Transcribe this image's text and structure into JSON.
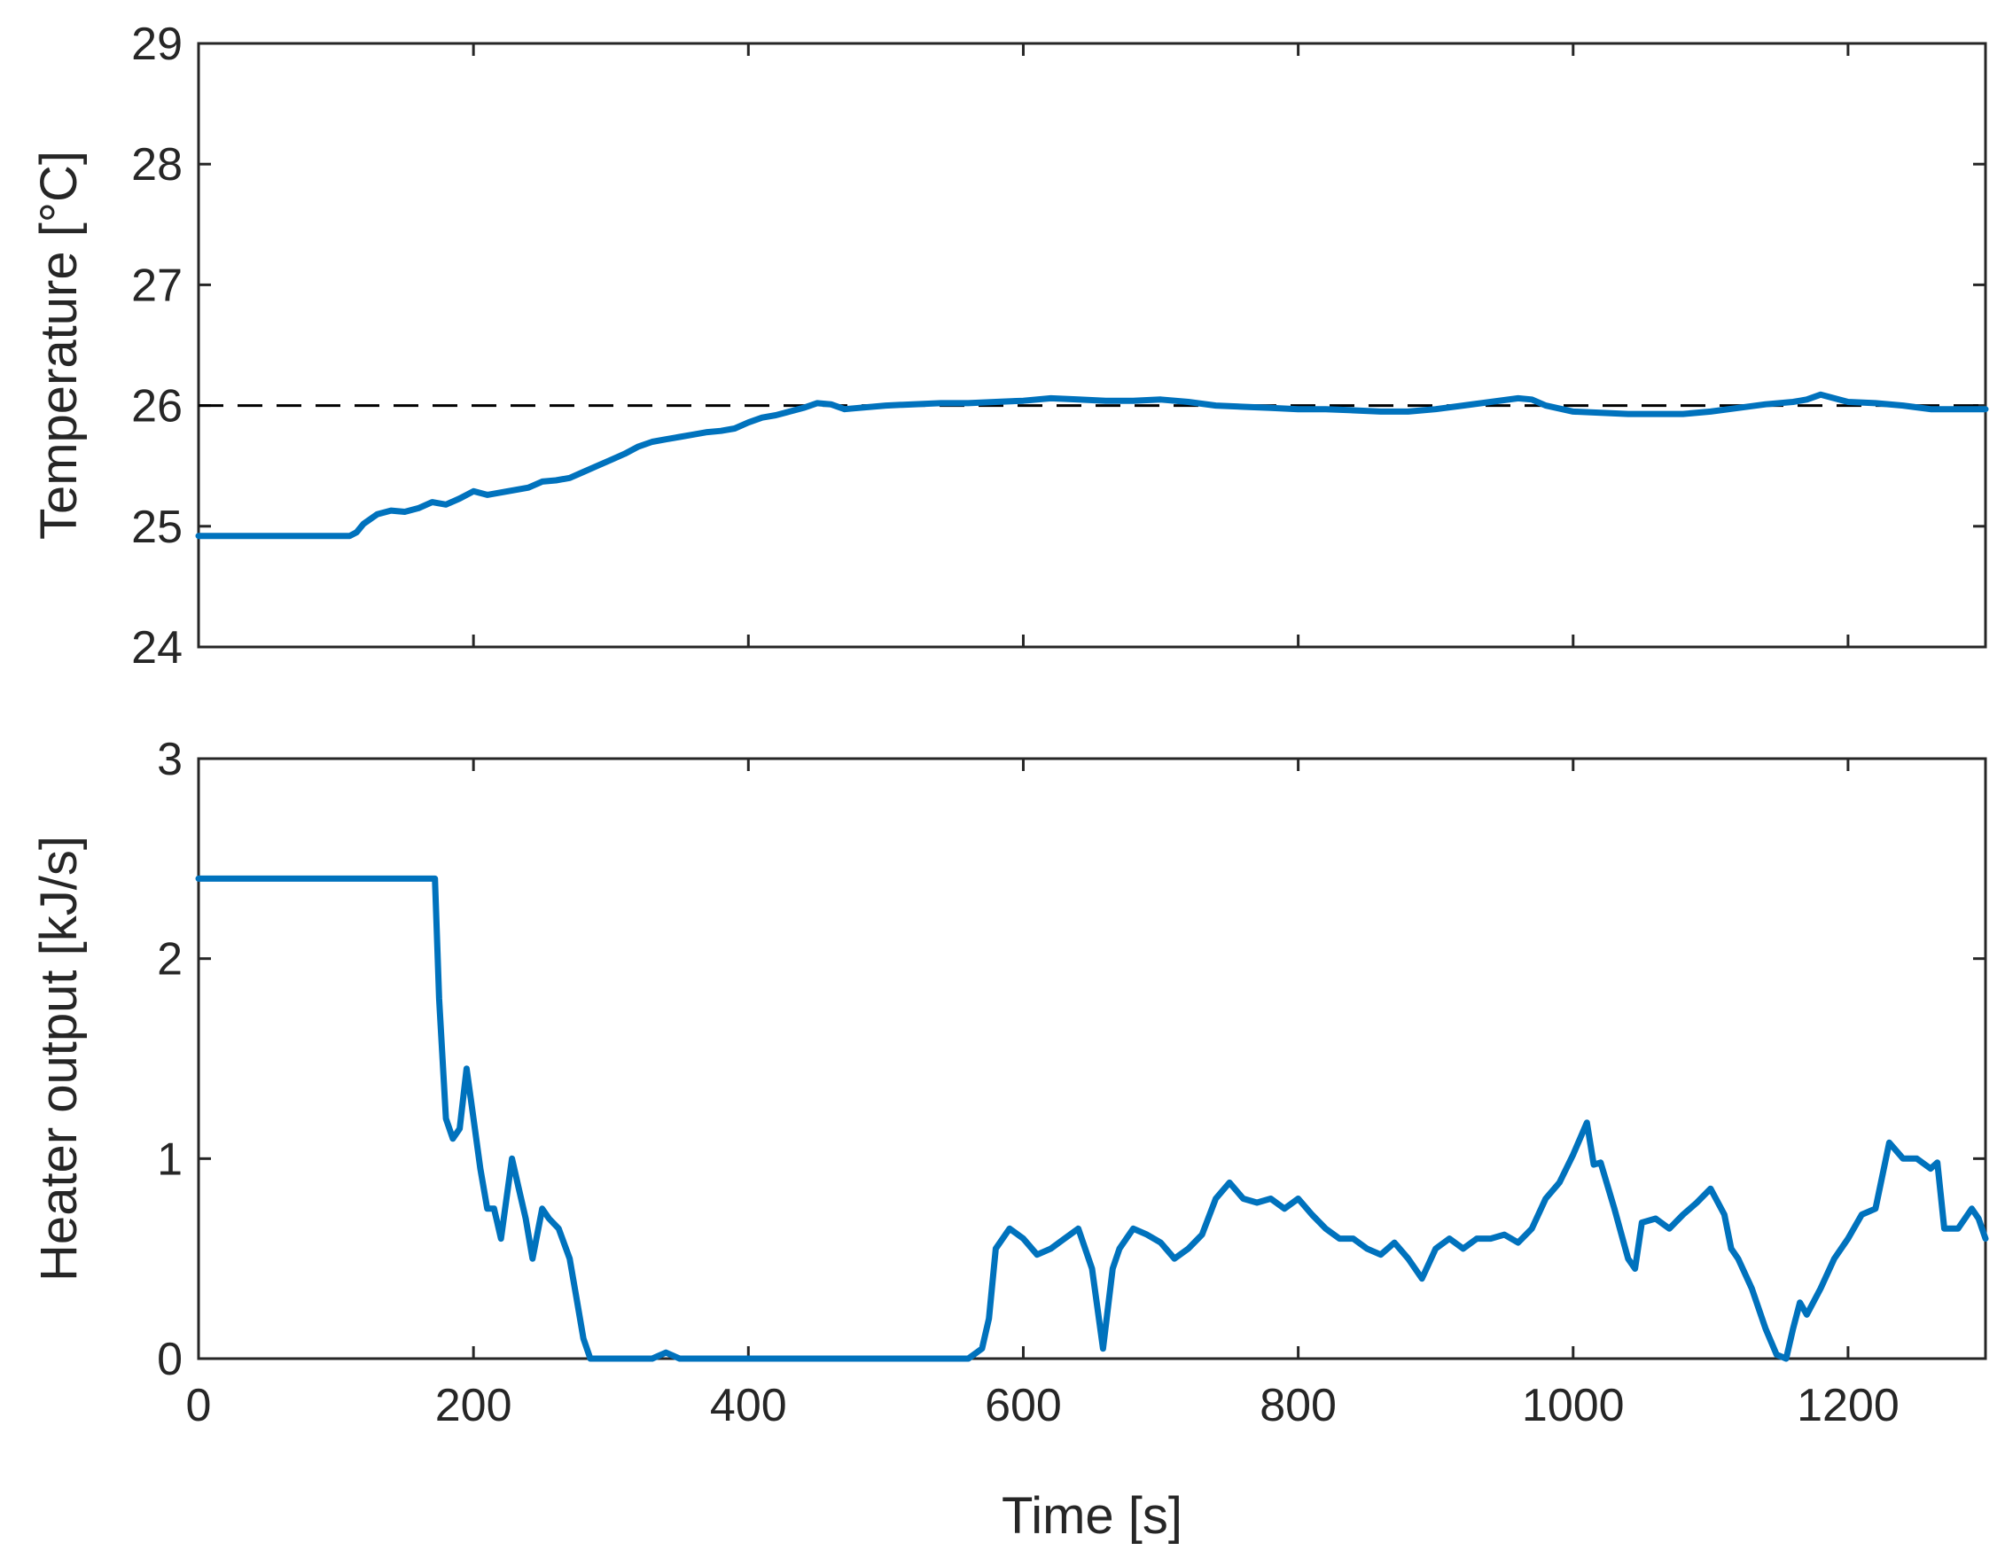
{
  "chart_data": [
    {
      "type": "line",
      "ylabel": "Temperature [°C]",
      "xlim": [
        0,
        1300
      ],
      "ylim": [
        24,
        29
      ],
      "yticks": [
        24,
        25,
        26,
        27,
        28,
        29
      ],
      "xticks": [
        200,
        400,
        600,
        800,
        1000,
        1200
      ],
      "show_x_tick_labels": false,
      "grid": false,
      "reference_line": {
        "y": 26,
        "style": "dashed",
        "color": "#000000"
      },
      "series": [
        {
          "color": "#0072BD",
          "x": [
            0,
            40,
            80,
            110,
            115,
            120,
            130,
            140,
            150,
            160,
            170,
            180,
            190,
            200,
            210,
            220,
            230,
            240,
            250,
            260,
            270,
            280,
            290,
            300,
            310,
            320,
            330,
            340,
            350,
            360,
            370,
            380,
            390,
            400,
            410,
            420,
            430,
            440,
            450,
            460,
            470,
            480,
            500,
            520,
            540,
            560,
            580,
            600,
            620,
            640,
            660,
            680,
            700,
            720,
            740,
            760,
            780,
            800,
            820,
            840,
            860,
            880,
            900,
            920,
            940,
            960,
            970,
            980,
            1000,
            1020,
            1040,
            1060,
            1080,
            1100,
            1120,
            1140,
            1160,
            1170,
            1180,
            1190,
            1200,
            1220,
            1240,
            1260,
            1280,
            1300
          ],
          "y": [
            24.92,
            24.92,
            24.92,
            24.92,
            24.95,
            25.02,
            25.1,
            25.13,
            25.12,
            25.15,
            25.2,
            25.18,
            25.23,
            25.29,
            25.26,
            25.28,
            25.3,
            25.32,
            25.37,
            25.38,
            25.4,
            25.45,
            25.5,
            25.55,
            25.6,
            25.66,
            25.7,
            25.72,
            25.74,
            25.76,
            25.78,
            25.79,
            25.81,
            25.86,
            25.9,
            25.92,
            25.95,
            25.98,
            26.02,
            26.01,
            25.97,
            25.98,
            26.0,
            26.01,
            26.02,
            26.02,
            26.03,
            26.04,
            26.06,
            26.05,
            26.04,
            26.04,
            26.05,
            26.03,
            26.0,
            25.99,
            25.98,
            25.97,
            25.97,
            25.96,
            25.95,
            25.95,
            25.97,
            26.0,
            26.03,
            26.06,
            26.05,
            26.0,
            25.95,
            25.94,
            25.93,
            25.93,
            25.93,
            25.95,
            25.98,
            26.01,
            26.03,
            26.05,
            26.09,
            26.06,
            26.03,
            26.02,
            26.0,
            25.97,
            25.97,
            25.97
          ]
        }
      ]
    },
    {
      "type": "line",
      "xlabel": "Time [s]",
      "ylabel": "Heater output [kJ/s]",
      "xlim": [
        0,
        1300
      ],
      "ylim": [
        0,
        3
      ],
      "yticks": [
        0,
        1,
        2,
        3
      ],
      "xticks": [
        0,
        200,
        400,
        600,
        800,
        1000,
        1200
      ],
      "grid": false,
      "series": [
        {
          "color": "#0072BD",
          "x": [
            0,
            170,
            172,
            175,
            180,
            185,
            190,
            195,
            198,
            200,
            205,
            210,
            215,
            220,
            228,
            233,
            238,
            243,
            250,
            255,
            262,
            270,
            275,
            280,
            285,
            290,
            300,
            330,
            340,
            350,
            400,
            500,
            560,
            570,
            575,
            580,
            590,
            600,
            610,
            620,
            630,
            640,
            650,
            658,
            665,
            670,
            680,
            690,
            700,
            710,
            720,
            730,
            740,
            750,
            760,
            770,
            780,
            790,
            800,
            810,
            820,
            830,
            840,
            850,
            860,
            870,
            880,
            890,
            900,
            910,
            920,
            930,
            940,
            950,
            960,
            970,
            980,
            990,
            1000,
            1010,
            1015,
            1020,
            1030,
            1040,
            1045,
            1050,
            1060,
            1070,
            1080,
            1090,
            1100,
            1110,
            1115,
            1120,
            1130,
            1140,
            1148,
            1155,
            1160,
            1165,
            1170,
            1180,
            1190,
            1200,
            1210,
            1220,
            1230,
            1240,
            1250,
            1260,
            1265,
            1270,
            1280,
            1290,
            1295,
            1300
          ],
          "y": [
            2.4,
            2.4,
            2.4,
            1.8,
            1.2,
            1.1,
            1.15,
            1.45,
            1.3,
            1.2,
            0.95,
            0.75,
            0.75,
            0.6,
            1.0,
            0.85,
            0.7,
            0.5,
            0.75,
            0.7,
            0.65,
            0.5,
            0.3,
            0.1,
            0.0,
            0.0,
            0.0,
            0.0,
            0.03,
            0.0,
            0.0,
            0.0,
            0.0,
            0.05,
            0.2,
            0.55,
            0.65,
            0.6,
            0.52,
            0.55,
            0.6,
            0.65,
            0.45,
            0.05,
            0.45,
            0.55,
            0.65,
            0.62,
            0.58,
            0.5,
            0.55,
            0.62,
            0.8,
            0.88,
            0.8,
            0.78,
            0.8,
            0.75,
            0.8,
            0.72,
            0.65,
            0.6,
            0.6,
            0.55,
            0.52,
            0.58,
            0.5,
            0.4,
            0.55,
            0.6,
            0.55,
            0.6,
            0.6,
            0.62,
            0.58,
            0.65,
            0.8,
            0.88,
            1.02,
            1.18,
            0.97,
            0.98,
            0.75,
            0.5,
            0.45,
            0.68,
            0.7,
            0.65,
            0.72,
            0.78,
            0.85,
            0.72,
            0.55,
            0.5,
            0.35,
            0.15,
            0.02,
            0.0,
            0.15,
            0.28,
            0.22,
            0.35,
            0.5,
            0.6,
            0.72,
            0.75,
            1.08,
            1.0,
            1.0,
            0.95,
            0.98,
            0.65,
            0.65,
            0.75,
            0.7,
            0.6
          ]
        }
      ]
    }
  ]
}
